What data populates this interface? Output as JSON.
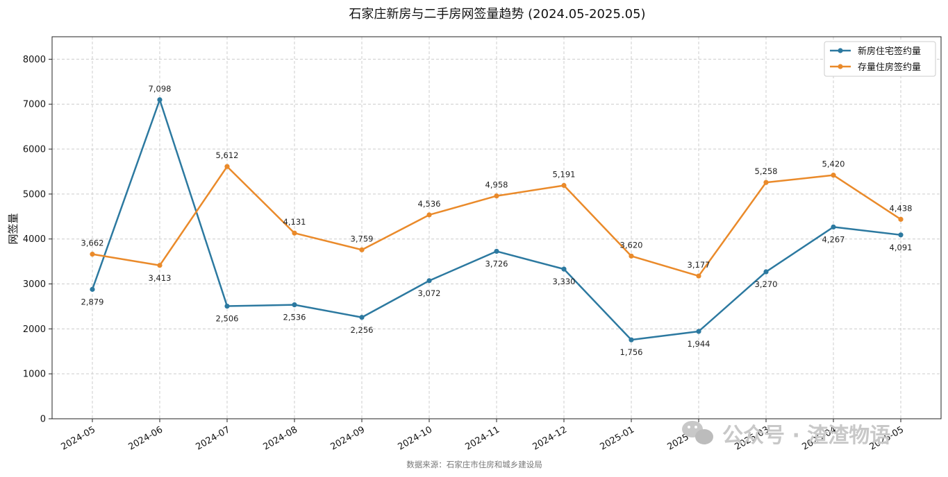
{
  "chart_data": {
    "type": "line",
    "title": "石家庄新房与二手房网签量趋势 (2024.05-2025.05)",
    "xlabel": "",
    "ylabel": "网签量",
    "categories": [
      "2024-05",
      "2024-06",
      "2024-07",
      "2024-08",
      "2024-09",
      "2024-10",
      "2024-11",
      "2024-12",
      "2025-01",
      "2025-02",
      "2025-03",
      "2025-04",
      "2025-05"
    ],
    "series": [
      {
        "name": "新房住宅签约量",
        "color": "#2c79a0",
        "values": [
          2879,
          7098,
          2506,
          2536,
          2256,
          3072,
          3726,
          3330,
          1756,
          1944,
          3270,
          4267,
          4091
        ],
        "value_labels": [
          "2,879",
          "7,098",
          "2,506",
          "2,536",
          "2,256",
          "3,072",
          "3,726",
          "3,330",
          "1,756",
          "1,944",
          "3,270",
          "4,267",
          "4,091"
        ]
      },
      {
        "name": "存量住房签约量",
        "color": "#ea8a2a",
        "values": [
          3662,
          3413,
          5612,
          4131,
          3759,
          4536,
          4958,
          5191,
          3620,
          3177,
          5258,
          5420,
          4438
        ],
        "value_labels": [
          "3,662",
          "3,413",
          "5,612",
          "4,131",
          "3,759",
          "4,536",
          "4,958",
          "5,191",
          "3,620",
          "3,177",
          "5,258",
          "5,420",
          "4,438"
        ]
      }
    ],
    "yticks": [
      "0",
      "1000",
      "2000",
      "3000",
      "4000",
      "5000",
      "6000",
      "7000",
      "8000"
    ],
    "ylim": [
      0,
      8500
    ],
    "grid": true,
    "legend": "top-right",
    "source": "数据来源：石家庄市住房和城乡建设局"
  },
  "watermark": "公众号 · 渣渣物语",
  "watermark_icon": "wechat-icon"
}
